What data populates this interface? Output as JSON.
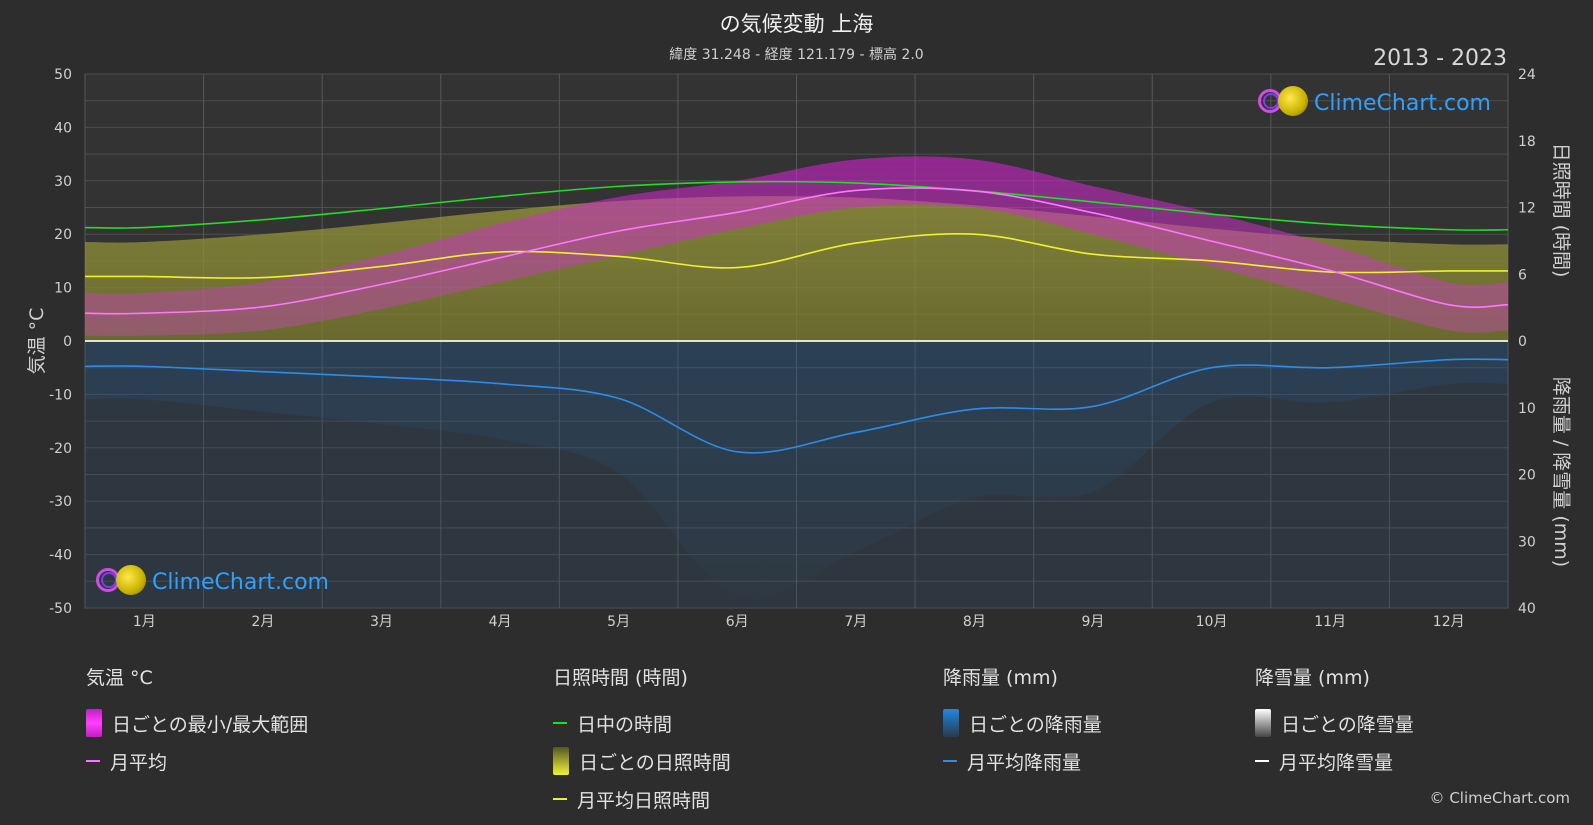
{
  "header": {
    "title": "の気候変動 上海",
    "subtitle": "緯度 31.248 - 経度 121.179 - 標高 2.0",
    "years": "2013 - 2023"
  },
  "brand": {
    "name": "ClimeChart.com",
    "copyright": "© ClimeChart.com"
  },
  "axes": {
    "left_label": "気温 °C",
    "right_top_label": "日照時間 (時間)",
    "right_bottom_label": "降雨量 / 降雪量 (mm)"
  },
  "legend": {
    "temperature": {
      "heading": "気温 °C",
      "range": "日ごとの最小/最大範囲",
      "mean": "月平均"
    },
    "sunshine": {
      "heading": "日照時間 (時間)",
      "daylight": "日中の時間",
      "daily": "日ごとの日照時間",
      "mean": "月平均日照時間"
    },
    "rain": {
      "heading": "降雨量 (mm)",
      "daily": "日ごとの降雨量",
      "mean": "月平均降雨量"
    },
    "snow": {
      "heading": "降雪量 (mm)",
      "daily": "日ごとの降雪量",
      "mean": "月平均降雪量"
    }
  },
  "colors": {
    "daylight": "#22dd22",
    "temp_mean": "#ff77ff",
    "temp_range": "#e020e0",
    "sunshine": "#f0f030",
    "sunshine_band": "#8f8f3a",
    "rain": "#1e88e5",
    "rain_line": "#2b8de8",
    "snow": "#ffffff"
  },
  "chart_data": {
    "type": "line",
    "categories": [
      "1月",
      "2月",
      "3月",
      "4月",
      "5月",
      "6月",
      "7月",
      "8月",
      "9月",
      "10月",
      "11月",
      "12月"
    ],
    "left_axis": {
      "label": "気温 °C",
      "ticks": [
        50,
        40,
        30,
        20,
        10,
        0,
        -10,
        -20,
        -30,
        -40,
        -50
      ],
      "range": [
        -50,
        50
      ]
    },
    "right_top_axis": {
      "label": "日照時間 (時間)",
      "ticks": [
        24,
        18,
        12,
        6,
        0
      ],
      "range": [
        0,
        24
      ]
    },
    "right_bottom_axis": {
      "label": "降雨量 / 降雪量 (mm)",
      "ticks": [
        0,
        10,
        20,
        30,
        40
      ],
      "range": [
        0,
        40
      ]
    },
    "series": [
      {
        "name": "日中の時間",
        "axis": "hours",
        "values": [
          10.2,
          10.9,
          11.9,
          13.0,
          13.9,
          14.3,
          14.2,
          13.5,
          12.5,
          11.4,
          10.5,
          10.0
        ]
      },
      {
        "name": "月平均日照時間",
        "axis": "hours",
        "values": [
          5.8,
          5.7,
          6.7,
          8.0,
          7.6,
          6.6,
          8.8,
          9.6,
          7.8,
          7.2,
          6.2,
          6.3
        ]
      },
      {
        "name": "月平均",
        "axis": "temp",
        "values": [
          5.2,
          6.4,
          10.6,
          15.6,
          20.6,
          24.1,
          28.2,
          28.1,
          24.0,
          18.7,
          13.2,
          6.8
        ]
      },
      {
        "name": "日ごとの最小/最大範囲",
        "axis": "temp",
        "max": [
          9,
          11,
          16,
          22,
          27,
          30,
          34,
          34,
          29,
          24,
          18,
          11
        ],
        "min": [
          1,
          2,
          6,
          11,
          16,
          21,
          25,
          25,
          20,
          14,
          8,
          2
        ]
      },
      {
        "name": "月平均降雨量",
        "axis": "mm",
        "values": [
          3.8,
          4.6,
          5.4,
          6.4,
          8.6,
          16.6,
          13.7,
          10.2,
          9.8,
          4.0,
          4.0,
          2.8
        ]
      },
      {
        "name": "月平均降雪量",
        "axis": "mm",
        "values": [
          0,
          0,
          0,
          0,
          0,
          0,
          0,
          0,
          0,
          0,
          0,
          0
        ]
      }
    ],
    "grid": true
  }
}
